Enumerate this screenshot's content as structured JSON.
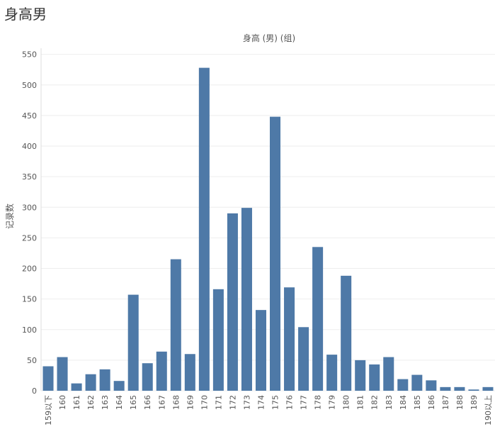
{
  "page": {
    "title": "身高男"
  },
  "chart_data": {
    "type": "bar",
    "title": "身高 (男) (组)",
    "xlabel": "",
    "ylabel": "记录数",
    "ylim": [
      0,
      560
    ],
    "yticks": [
      0,
      50,
      100,
      150,
      200,
      250,
      300,
      350,
      400,
      450,
      500,
      550
    ],
    "grid": true,
    "bar_color": "#4e79a7",
    "categories": [
      "159以下",
      "160",
      "161",
      "162",
      "163",
      "164",
      "165",
      "166",
      "167",
      "168",
      "169",
      "170",
      "171",
      "172",
      "173",
      "174",
      "175",
      "176",
      "177",
      "178",
      "179",
      "180",
      "181",
      "182",
      "183",
      "184",
      "185",
      "186",
      "187",
      "188",
      "189",
      "190以上"
    ],
    "values": [
      40,
      55,
      12,
      27,
      35,
      16,
      157,
      45,
      64,
      215,
      60,
      528,
      166,
      290,
      299,
      132,
      448,
      169,
      104,
      235,
      59,
      188,
      50,
      43,
      55,
      19,
      26,
      17,
      6,
      6,
      2,
      6
    ]
  }
}
